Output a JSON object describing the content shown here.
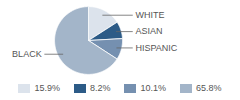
{
  "chart_data": {
    "type": "pie",
    "categories": [
      "WHITE",
      "ASIAN",
      "HISPANIC",
      "BLACK"
    ],
    "values": [
      15.9,
      8.2,
      10.1,
      65.8
    ],
    "value_labels": [
      "15.9%",
      "8.2%",
      "10.1%",
      "65.8%"
    ],
    "colors": [
      "#dce3ec",
      "#2c5b87",
      "#7590b0",
      "#a3b5c9"
    ],
    "legend": "bottom"
  }
}
